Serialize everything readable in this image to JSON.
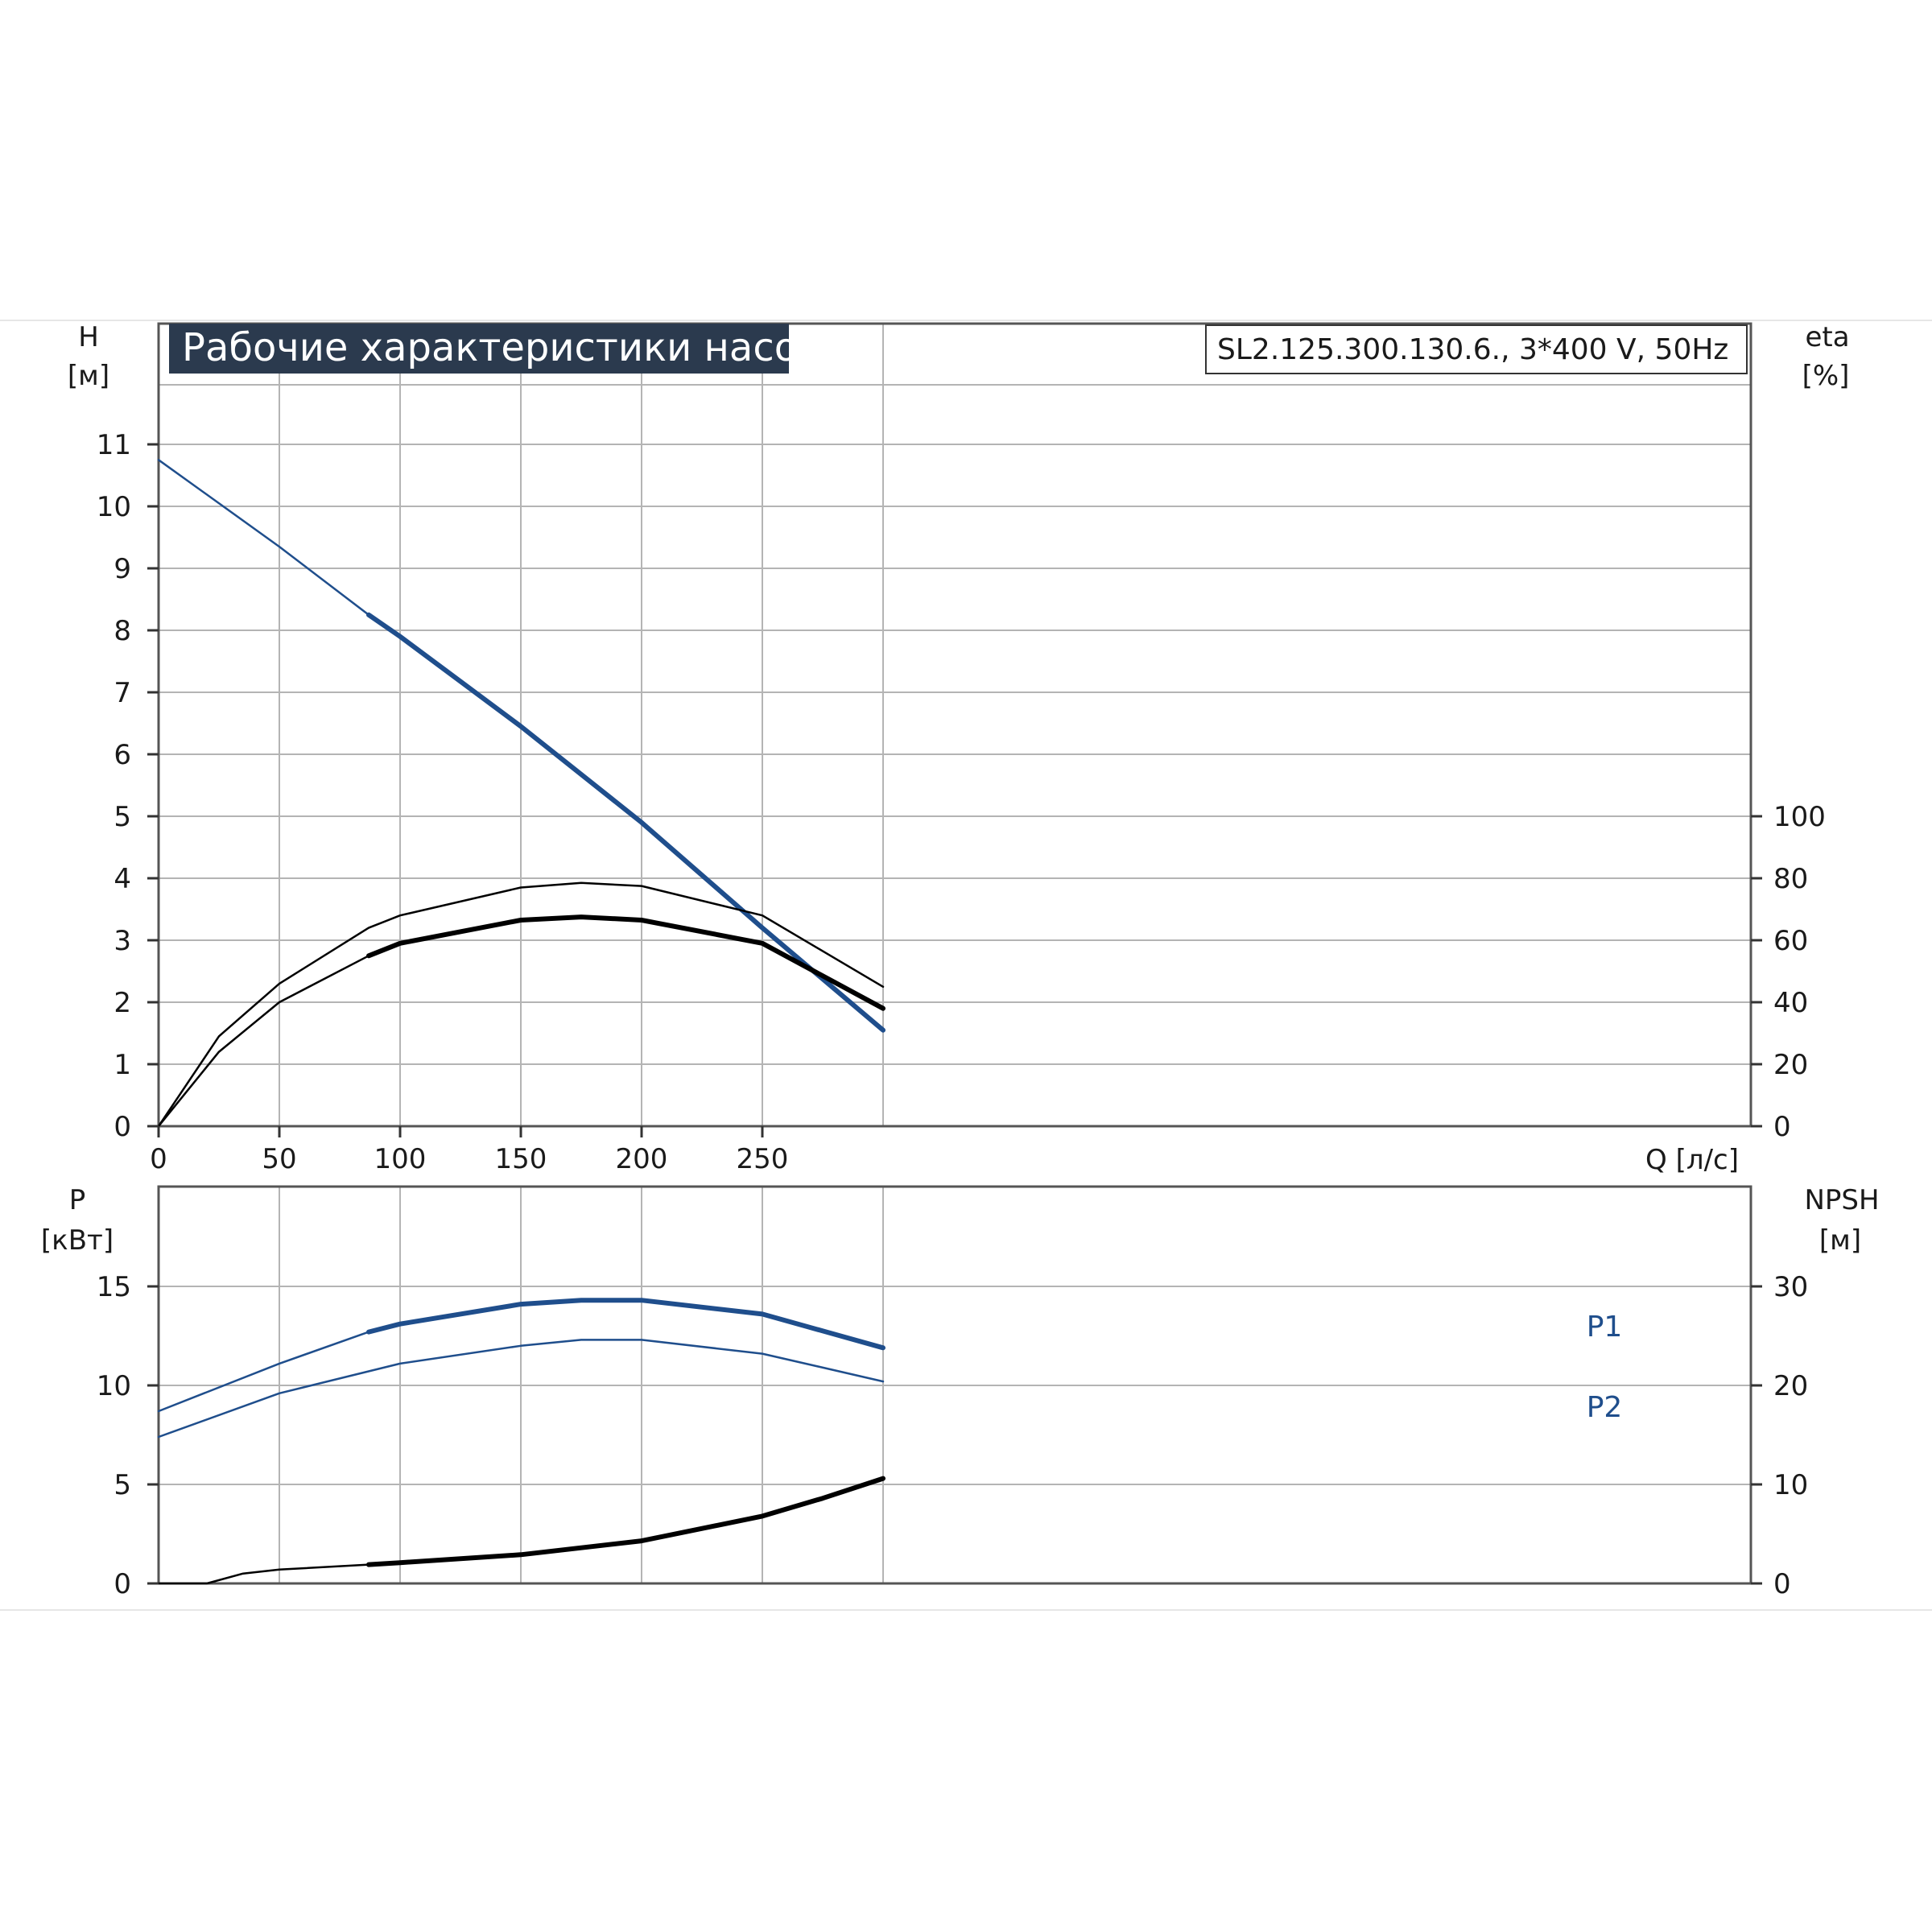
{
  "header": {
    "title": "Рабочие характеристики насоса",
    "model": "SL2.125.300.130.6., 3*400 V, 50Hz"
  },
  "colors": {
    "background": "#ffffff",
    "grid": "#b4b4b4",
    "axis": "#333333",
    "banner": "#2b3a4e",
    "blue_series": "#1f4e8c",
    "black_series": "#000000"
  },
  "chart_data": [
    {
      "type": "line",
      "name": "top-panel",
      "xlabel": "Q [л/с]",
      "ylabel_left_title": "H",
      "ylabel_left_unit": "[м]",
      "ylabel_right_title": "eta",
      "ylabel_right_unit": "[%]",
      "xlim": [
        0,
        330
      ],
      "ylim_left": [
        0,
        12
      ],
      "ylim_right": [
        0,
        240
      ],
      "x_ticks": [
        "0",
        "50",
        "100",
        "150",
        "200",
        "250"
      ],
      "y_ticks_left": [
        "0",
        "1",
        "2",
        "3",
        "4",
        "5",
        "6",
        "7",
        "8",
        "9",
        "10",
        "11"
      ],
      "y_ticks_right": [
        "0",
        "20",
        "40",
        "60",
        "80",
        "100"
      ],
      "grid": true,
      "series": [
        {
          "role": "H curve",
          "axis": "left",
          "color": "#1f4e8c",
          "bold_from": 87,
          "points": [
            [
              0,
              10.75
            ],
            [
              50,
              9.35
            ],
            [
              87,
              8.25
            ],
            [
              100,
              7.9
            ],
            [
              150,
              6.45
            ],
            [
              200,
              4.9
            ],
            [
              250,
              3.2
            ],
            [
              300,
              1.55
            ]
          ]
        },
        {
          "role": "eta curve",
          "axis": "right",
          "color": "#000000",
          "bold_from": 999,
          "points": [
            [
              0,
              0
            ],
            [
              25,
              29
            ],
            [
              50,
              46
            ],
            [
              87,
              64
            ],
            [
              100,
              68
            ],
            [
              150,
              77
            ],
            [
              175,
              78.5
            ],
            [
              200,
              77.5
            ],
            [
              250,
              68
            ],
            [
              300,
              45
            ]
          ]
        },
        {
          "role": "eta curve (bold)",
          "axis": "right",
          "color": "#000000",
          "bold_from": 87,
          "points": [
            [
              0,
              0
            ],
            [
              25,
              24
            ],
            [
              50,
              40
            ],
            [
              87,
              55
            ],
            [
              100,
              59
            ],
            [
              150,
              66.5
            ],
            [
              175,
              67.5
            ],
            [
              200,
              66.5
            ],
            [
              250,
              59
            ],
            [
              300,
              38
            ]
          ]
        }
      ]
    },
    {
      "type": "line",
      "name": "bottom-panel",
      "ylabel_left_title": "P",
      "ylabel_left_unit": "[кВт]",
      "ylabel_right_title": "NPSH",
      "ylabel_right_unit": "[м]",
      "xlim": [
        0,
        330
      ],
      "ylim_left": [
        0,
        20
      ],
      "ylim_right": [
        0,
        40
      ],
      "y_ticks_left": [
        "0",
        "5",
        "10",
        "15"
      ],
      "y_ticks_right": [
        "0",
        "10",
        "20",
        "30"
      ],
      "grid": true,
      "series": [
        {
          "name": "P1",
          "axis": "left",
          "color": "#1f4e8c",
          "bold_from": 87,
          "points": [
            [
              0,
              8.7
            ],
            [
              50,
              11.1
            ],
            [
              87,
              12.7
            ],
            [
              100,
              13.1
            ],
            [
              150,
              14.1
            ],
            [
              175,
              14.3
            ],
            [
              200,
              14.3
            ],
            [
              250,
              13.6
            ],
            [
              300,
              11.9
            ]
          ]
        },
        {
          "name": "P2",
          "axis": "left",
          "color": "#1f4e8c",
          "bold_from": 999,
          "points": [
            [
              0,
              7.4
            ],
            [
              50,
              9.6
            ],
            [
              100,
              11.1
            ],
            [
              150,
              12.0
            ],
            [
              175,
              12.3
            ],
            [
              200,
              12.3
            ],
            [
              250,
              11.6
            ],
            [
              300,
              10.2
            ]
          ]
        },
        {
          "role": "NPSH curve",
          "axis": "right",
          "color": "#000000",
          "bold_from": 87,
          "points": [
            [
              0,
              0
            ],
            [
              20,
              0
            ],
            [
              35,
              1.0
            ],
            [
              50,
              1.4
            ],
            [
              87,
              1.9
            ],
            [
              100,
              2.1
            ],
            [
              150,
              2.9
            ],
            [
              200,
              4.3
            ],
            [
              250,
              6.8
            ],
            [
              275,
              8.6
            ],
            [
              300,
              10.6
            ]
          ]
        }
      ]
    }
  ]
}
